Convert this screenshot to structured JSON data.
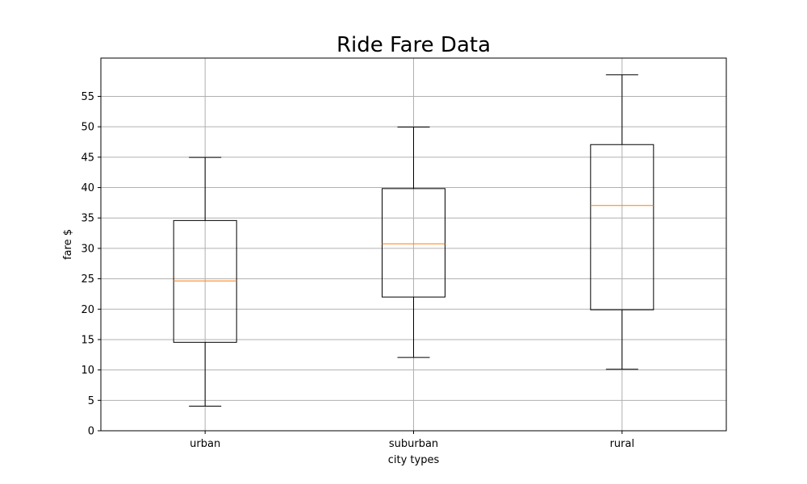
{
  "chart_data": {
    "type": "box",
    "title": "Ride Fare Data",
    "xlabel": "city types",
    "ylabel": "fare $",
    "categories": [
      "urban",
      "suburban",
      "rural"
    ],
    "boxes": [
      {
        "category": "urban",
        "whisker_low": 4.05,
        "q1": 14.55,
        "median": 24.64,
        "q3": 34.58,
        "whisker_high": 44.97
      },
      {
        "category": "suburban",
        "whisker_low": 12.05,
        "q1": 22.0,
        "median": 30.75,
        "q3": 39.83,
        "whisker_high": 49.96
      },
      {
        "category": "rural",
        "whisker_low": 10.11,
        "q1": 19.9,
        "median": 37.05,
        "q3": 47.07,
        "whisker_high": 58.55
      }
    ],
    "ylim": [
      0,
      61.3
    ],
    "yticks": [
      0,
      5,
      10,
      15,
      20,
      25,
      30,
      35,
      40,
      45,
      50,
      55
    ],
    "grid": true,
    "colors": {
      "box": "#000000",
      "median": "#ff7f0e",
      "grid": "#b0b0b0"
    }
  }
}
